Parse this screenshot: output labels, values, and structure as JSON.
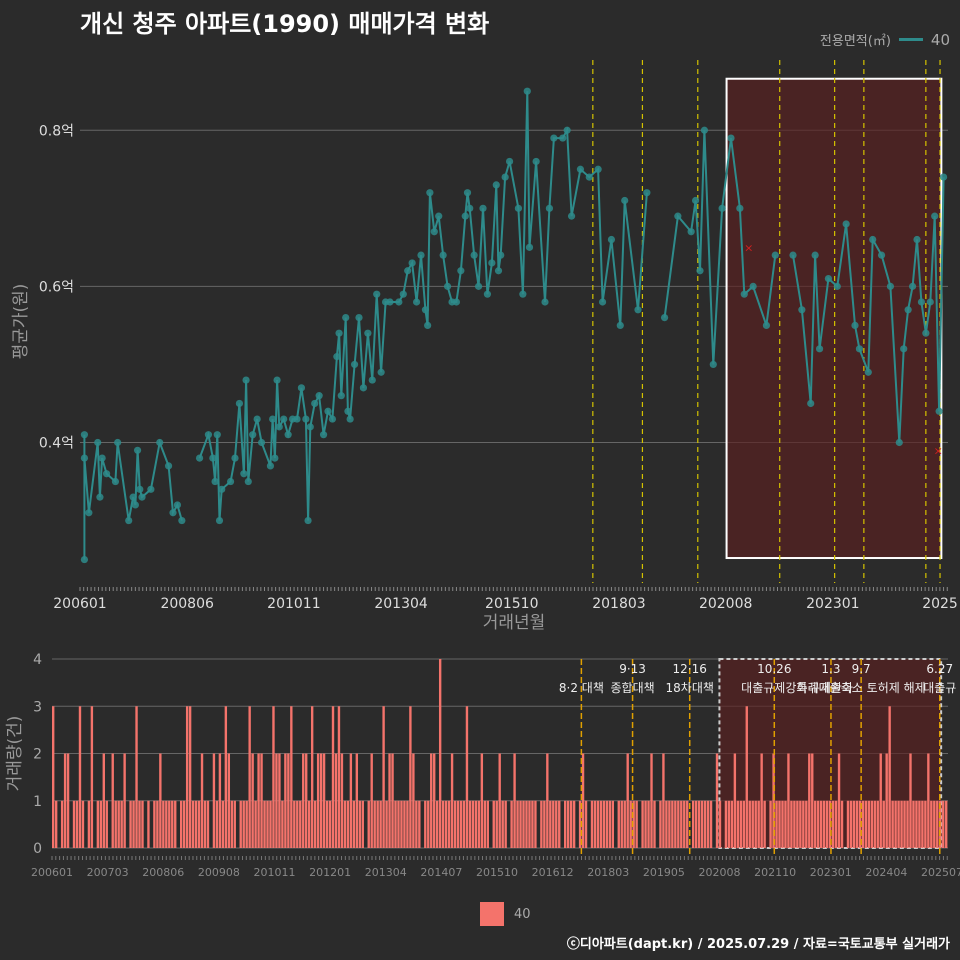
{
  "title": "개신 청주 아파트(1990) 매매가격 변화",
  "legend": {
    "title": "전용면적(㎡)",
    "series_label": "40",
    "bar_label": "40"
  },
  "footer": "ⓒ디아파트(dapt.kr) / 2025.07.29 / 자료=국토교통부 실거래가",
  "colors": {
    "background": "#2b2b2b",
    "line": "#2e8b8b",
    "bar": "#f4736b",
    "policy": "#d4c200",
    "highlight": "#5a1f1f",
    "marker": "#d42020"
  },
  "chart_data": [
    {
      "type": "line",
      "title": "개신 청주 아파트(1990) 매매가격 변화",
      "xlabel": "거래년월",
      "ylabel": "평균가(원)",
      "xlim": [
        2006.0,
        2025.6
      ],
      "ylim": [
        0.22,
        0.89
      ],
      "y_ticks": [
        0.4,
        0.6,
        0.8
      ],
      "y_tick_labels": [
        "0.4억",
        "0.6억",
        "0.8억"
      ],
      "x_ticks": [
        2006.0,
        2008.42,
        2010.83,
        2013.25,
        2015.75,
        2018.17,
        2020.58,
        2023.0,
        2025.42
      ],
      "x_tick_labels": [
        "200601",
        "200806",
        "201011",
        "201304",
        "201510",
        "201803",
        "202008",
        "202301",
        "2025"
      ],
      "policy_lines": [
        2017.58,
        2018.7,
        2019.95,
        2021.8,
        2023.04,
        2023.7,
        2025.1,
        2025.42
      ],
      "highlight_range": [
        2020.6,
        2025.45
      ],
      "excluded_points": [
        [
          2021.1,
          0.65
        ],
        [
          2025.38,
          0.39
        ]
      ],
      "series": [
        {
          "name": "40",
          "points": [
            [
              2006.1,
              0.25
            ],
            [
              2006.1,
              0.41
            ],
            [
              2006.1,
              0.38
            ],
            [
              2006.2,
              0.31
            ],
            [
              2006.4,
              0.4
            ],
            [
              2006.45,
              0.33
            ],
            [
              2006.5,
              0.38
            ],
            [
              2006.6,
              0.36
            ],
            [
              2006.8,
              0.35
            ],
            [
              2006.85,
              0.4
            ],
            [
              2007.1,
              0.3
            ],
            [
              2007.2,
              0.33
            ],
            [
              2007.25,
              0.32
            ],
            [
              2007.3,
              0.39
            ],
            [
              2007.35,
              0.34
            ],
            [
              2007.4,
              0.33
            ],
            [
              2007.6,
              0.34
            ],
            [
              2007.8,
              0.4
            ],
            [
              2008.0,
              0.37
            ],
            [
              2008.1,
              0.31
            ],
            [
              2008.2,
              0.32
            ],
            [
              2008.3,
              0.3
            ],
            [
              2008.7,
              0.38
            ],
            [
              2008.9,
              0.41
            ],
            [
              2009.0,
              0.38
            ],
            [
              2009.05,
              0.35
            ],
            [
              2009.1,
              0.41
            ],
            [
              2009.15,
              0.3
            ],
            [
              2009.2,
              0.34
            ],
            [
              2009.4,
              0.35
            ],
            [
              2009.5,
              0.38
            ],
            [
              2009.6,
              0.45
            ],
            [
              2009.7,
              0.36
            ],
            [
              2009.75,
              0.48
            ],
            [
              2009.8,
              0.35
            ],
            [
              2009.9,
              0.41
            ],
            [
              2010.0,
              0.43
            ],
            [
              2010.1,
              0.4
            ],
            [
              2010.3,
              0.37
            ],
            [
              2010.35,
              0.43
            ],
            [
              2010.4,
              0.38
            ],
            [
              2010.45,
              0.48
            ],
            [
              2010.5,
              0.42
            ],
            [
              2010.6,
              0.43
            ],
            [
              2010.7,
              0.41
            ],
            [
              2010.8,
              0.43
            ],
            [
              2010.9,
              0.43
            ],
            [
              2011.0,
              0.47
            ],
            [
              2011.1,
              0.43
            ],
            [
              2011.15,
              0.3
            ],
            [
              2011.2,
              0.42
            ],
            [
              2011.3,
              0.45
            ],
            [
              2011.4,
              0.46
            ],
            [
              2011.5,
              0.41
            ],
            [
              2011.6,
              0.44
            ],
            [
              2011.7,
              0.43
            ],
            [
              2011.8,
              0.51
            ],
            [
              2011.85,
              0.54
            ],
            [
              2011.9,
              0.46
            ],
            [
              2012.0,
              0.56
            ],
            [
              2012.05,
              0.44
            ],
            [
              2012.1,
              0.43
            ],
            [
              2012.2,
              0.5
            ],
            [
              2012.3,
              0.56
            ],
            [
              2012.4,
              0.47
            ],
            [
              2012.5,
              0.54
            ],
            [
              2012.6,
              0.48
            ],
            [
              2012.7,
              0.59
            ],
            [
              2012.8,
              0.49
            ],
            [
              2012.9,
              0.58
            ],
            [
              2013.0,
              0.58
            ],
            [
              2013.2,
              0.58
            ],
            [
              2013.3,
              0.59
            ],
            [
              2013.4,
              0.62
            ],
            [
              2013.5,
              0.63
            ],
            [
              2013.6,
              0.58
            ],
            [
              2013.7,
              0.64
            ],
            [
              2013.8,
              0.57
            ],
            [
              2013.85,
              0.55
            ],
            [
              2013.9,
              0.72
            ],
            [
              2014.0,
              0.67
            ],
            [
              2014.1,
              0.69
            ],
            [
              2014.2,
              0.64
            ],
            [
              2014.3,
              0.6
            ],
            [
              2014.4,
              0.58
            ],
            [
              2014.5,
              0.58
            ],
            [
              2014.6,
              0.62
            ],
            [
              2014.7,
              0.69
            ],
            [
              2014.75,
              0.72
            ],
            [
              2014.8,
              0.7
            ],
            [
              2014.9,
              0.64
            ],
            [
              2015.0,
              0.6
            ],
            [
              2015.1,
              0.7
            ],
            [
              2015.2,
              0.59
            ],
            [
              2015.3,
              0.63
            ],
            [
              2015.4,
              0.73
            ],
            [
              2015.45,
              0.62
            ],
            [
              2015.5,
              0.64
            ],
            [
              2015.6,
              0.74
            ],
            [
              2015.7,
              0.76
            ],
            [
              2015.9,
              0.7
            ],
            [
              2016.0,
              0.59
            ],
            [
              2016.1,
              0.85
            ],
            [
              2016.15,
              0.65
            ],
            [
              2016.3,
              0.76
            ],
            [
              2016.5,
              0.58
            ],
            [
              2016.6,
              0.7
            ],
            [
              2016.7,
              0.79
            ],
            [
              2016.9,
              0.79
            ],
            [
              2017.0,
              0.8
            ],
            [
              2017.1,
              0.69
            ],
            [
              2017.3,
              0.75
            ],
            [
              2017.5,
              0.74
            ],
            [
              2017.7,
              0.75
            ],
            [
              2017.8,
              0.58
            ],
            [
              2018.0,
              0.66
            ],
            [
              2018.2,
              0.55
            ],
            [
              2018.3,
              0.71
            ],
            [
              2018.6,
              0.57
            ],
            [
              2018.8,
              0.72
            ],
            [
              2019.2,
              0.56
            ],
            [
              2019.5,
              0.69
            ],
            [
              2019.8,
              0.67
            ],
            [
              2019.9,
              0.71
            ],
            [
              2020.0,
              0.62
            ],
            [
              2020.1,
              0.8
            ],
            [
              2020.3,
              0.5
            ],
            [
              2020.5,
              0.7
            ],
            [
              2020.7,
              0.79
            ],
            [
              2020.9,
              0.7
            ],
            [
              2021.0,
              0.59
            ],
            [
              2021.2,
              0.6
            ],
            [
              2021.5,
              0.55
            ],
            [
              2021.7,
              0.64
            ],
            [
              2022.1,
              0.64
            ],
            [
              2022.3,
              0.57
            ],
            [
              2022.5,
              0.45
            ],
            [
              2022.6,
              0.64
            ],
            [
              2022.7,
              0.52
            ],
            [
              2022.9,
              0.61
            ],
            [
              2023.1,
              0.6
            ],
            [
              2023.3,
              0.68
            ],
            [
              2023.5,
              0.55
            ],
            [
              2023.6,
              0.52
            ],
            [
              2023.8,
              0.49
            ],
            [
              2023.9,
              0.66
            ],
            [
              2024.1,
              0.64
            ],
            [
              2024.3,
              0.6
            ],
            [
              2024.5,
              0.4
            ],
            [
              2024.6,
              0.52
            ],
            [
              2024.7,
              0.57
            ],
            [
              2024.8,
              0.6
            ],
            [
              2024.9,
              0.66
            ],
            [
              2025.0,
              0.58
            ],
            [
              2025.1,
              0.54
            ],
            [
              2025.2,
              0.58
            ],
            [
              2025.3,
              0.69
            ],
            [
              2025.4,
              0.44
            ],
            [
              2025.5,
              0.74
            ]
          ]
        }
      ]
    },
    {
      "type": "bar",
      "xlabel": "",
      "ylabel": "거래량(건)",
      "ylim": [
        0,
        4
      ],
      "y_ticks": [
        0,
        1,
        2,
        3,
        4
      ],
      "x_tick_labels": [
        "200601",
        "200703",
        "200806",
        "200908",
        "201011",
        "201201",
        "201304",
        "201407",
        "201510",
        "201612",
        "201803",
        "201905",
        "202008",
        "202110",
        "202301",
        "202404",
        "202507"
      ],
      "annotations": [
        {
          "x": 2017.58,
          "date": "",
          "text": "8·2 대책"
        },
        {
          "x": 2018.7,
          "date": "9·13",
          "text": "종합대책"
        },
        {
          "x": 2019.95,
          "date": "12·16",
          "text": "18차대책"
        },
        {
          "x": 2021.8,
          "date": "10.26",
          "text": "대출규제강화"
        },
        {
          "x": 2023.04,
          "date": "1.3",
          "text": "규제완화"
        },
        {
          "x": 2023.7,
          "date": "9.7",
          "text": "특례대출축소 토허제 해제"
        },
        {
          "x": 2025.42,
          "date": "6.27",
          "text": "대출규"
        }
      ],
      "series": [
        {
          "name": "40",
          "values": [
            3,
            1,
            0,
            1,
            2,
            2,
            0,
            1,
            1,
            3,
            1,
            0,
            1,
            3,
            0,
            1,
            1,
            2,
            1,
            0,
            2,
            1,
            1,
            1,
            2,
            0,
            1,
            1,
            3,
            1,
            1,
            0,
            1,
            0,
            1,
            1,
            2,
            1,
            1,
            1,
            1,
            1,
            0,
            1,
            1,
            3,
            3,
            1,
            1,
            1,
            2,
            1,
            1,
            0,
            2,
            1,
            2,
            1,
            3,
            2,
            1,
            1,
            0,
            1,
            1,
            1,
            3,
            2,
            1,
            2,
            2,
            1,
            1,
            1,
            3,
            2,
            2,
            1,
            2,
            2,
            3,
            1,
            1,
            1,
            2,
            2,
            1,
            3,
            1,
            2,
            2,
            2,
            1,
            1,
            3,
            2,
            3,
            2,
            1,
            1,
            2,
            1,
            2,
            1,
            1,
            0,
            1,
            2,
            1,
            1,
            1,
            3,
            1,
            2,
            2,
            1,
            1,
            1,
            1,
            1,
            3,
            2,
            1,
            1,
            0,
            1,
            1,
            2,
            2,
            1,
            4,
            1,
            1,
            1,
            2,
            1,
            1,
            1,
            1,
            3,
            1,
            1,
            1,
            1,
            2,
            1,
            1,
            0,
            1,
            1,
            2,
            1,
            1,
            0,
            1,
            2,
            1,
            1,
            1,
            1,
            1,
            1,
            1,
            0,
            1,
            1,
            2,
            1,
            1,
            1,
            1,
            0,
            1,
            1,
            1,
            1,
            0,
            1,
            2,
            1,
            0,
            1,
            1,
            1,
            1,
            1,
            1,
            1,
            1,
            0,
            1,
            1,
            1,
            2,
            1,
            1,
            1,
            0,
            1,
            1,
            1,
            2,
            1,
            0,
            1,
            2,
            1,
            1,
            1,
            1,
            1,
            1,
            1,
            1,
            0,
            1,
            1,
            1,
            1,
            1,
            1,
            1,
            0,
            2,
            1,
            0,
            1,
            1,
            1,
            2,
            1,
            1,
            1,
            3,
            1,
            1,
            1,
            1,
            2,
            1,
            0,
            1,
            2,
            1,
            1,
            1,
            1,
            2,
            1,
            1,
            1,
            1,
            1,
            1,
            2,
            2,
            1,
            1,
            1,
            1,
            1,
            1,
            1,
            1,
            2,
            1,
            0,
            1,
            1,
            1,
            1,
            1,
            1,
            1,
            1,
            1,
            1,
            1,
            2,
            1,
            2,
            3,
            1,
            1,
            1,
            1,
            1,
            1,
            2,
            1,
            1,
            1,
            1,
            1,
            2,
            1,
            1,
            1,
            1,
            1,
            1
          ]
        }
      ]
    }
  ]
}
